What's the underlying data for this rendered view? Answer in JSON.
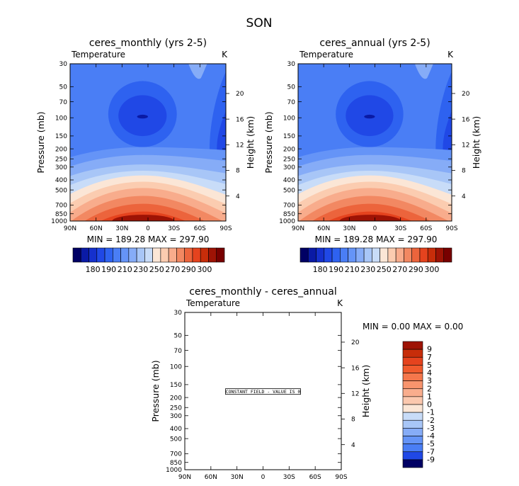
{
  "figure_title": "SON",
  "colors": {
    "scale": [
      "#000064",
      "#0a1aa5",
      "#1530cd",
      "#2048e6",
      "#2e62f0",
      "#4a7ef5",
      "#6594f7",
      "#86acf7",
      "#a8c6f7",
      "#c8dcf8",
      "#fbe6d6",
      "#fbccb0",
      "#f8ac8c",
      "#f28862",
      "#ec643c",
      "#e5431e",
      "#c72d0a",
      "#9e1305",
      "#780000"
    ]
  },
  "chart_data": [
    {
      "type": "contour",
      "id": "monthly",
      "title": "ceres_monthly (yrs 2-5)",
      "left_label": "Temperature",
      "right_label": "K",
      "xlabel": "",
      "ylabel": "Pressure (mb)",
      "ylabel_right": "Height (km)",
      "x_ticks": [
        "90N",
        "60N",
        "30N",
        "0",
        "30S",
        "60S",
        "90S"
      ],
      "y_ticks": [
        "30",
        "50",
        "70",
        "100",
        "150",
        "200",
        "250",
        "300",
        "400",
        "500",
        "700",
        "850",
        "1000"
      ],
      "height_ticks": [
        "20",
        "16",
        "12",
        "8",
        "4"
      ],
      "stats": "MIN = 189.28   MAX = 297.90",
      "colorbar": {
        "orientation": "horizontal",
        "labels": [
          "180",
          "190",
          "210",
          "230",
          "250",
          "270",
          "290",
          "300"
        ],
        "levels": [
          180,
          185,
          190,
          200,
          210,
          220,
          230,
          240,
          250,
          260,
          270,
          275,
          280,
          285,
          290,
          295,
          300
        ]
      }
    },
    {
      "type": "contour",
      "id": "annual",
      "title": "ceres_annual (yrs 2-5)",
      "left_label": "Temperature",
      "right_label": "K",
      "xlabel": "",
      "ylabel": "Pressure (mb)",
      "ylabel_right": "Height (km)",
      "x_ticks": [
        "90N",
        "60N",
        "30N",
        "0",
        "30S",
        "60S",
        "90S"
      ],
      "y_ticks": [
        "30",
        "50",
        "70",
        "100",
        "150",
        "200",
        "250",
        "300",
        "400",
        "500",
        "700",
        "850",
        "1000"
      ],
      "height_ticks": [
        "20",
        "16",
        "12",
        "8",
        "4"
      ],
      "stats": "MIN = 189.28   MAX = 297.90",
      "colorbar": {
        "orientation": "horizontal",
        "labels": [
          "180",
          "190",
          "210",
          "230",
          "250",
          "270",
          "290",
          "300"
        ],
        "levels": [
          180,
          185,
          190,
          200,
          210,
          220,
          230,
          240,
          250,
          260,
          270,
          275,
          280,
          285,
          290,
          295,
          300
        ]
      }
    },
    {
      "type": "contour",
      "id": "diff",
      "title": "ceres_monthly - ceres_annual",
      "left_label": "Temperature",
      "right_label": "K",
      "xlabel": "",
      "ylabel": "Pressure (mb)",
      "ylabel_right": "Height (km)",
      "x_ticks": [
        "90N",
        "60N",
        "30N",
        "0",
        "30S",
        "60S",
        "90S"
      ],
      "y_ticks": [
        "30",
        "50",
        "70",
        "100",
        "150",
        "200",
        "250",
        "300",
        "400",
        "500",
        "700",
        "850",
        "1000"
      ],
      "height_ticks": [
        "20",
        "16",
        "12",
        "8",
        "4"
      ],
      "stats": "MIN =    0.00   MAX =    0.00",
      "constant_field_label": "CONSTANT FIELD - VALUE IS 0",
      "colorbar": {
        "orientation": "vertical",
        "labels": [
          "9",
          "7",
          "5",
          "4",
          "3",
          "2",
          "1",
          "0",
          "-1",
          "-2",
          "-3",
          "-4",
          "-5",
          "-7",
          "-9"
        ]
      }
    }
  ]
}
